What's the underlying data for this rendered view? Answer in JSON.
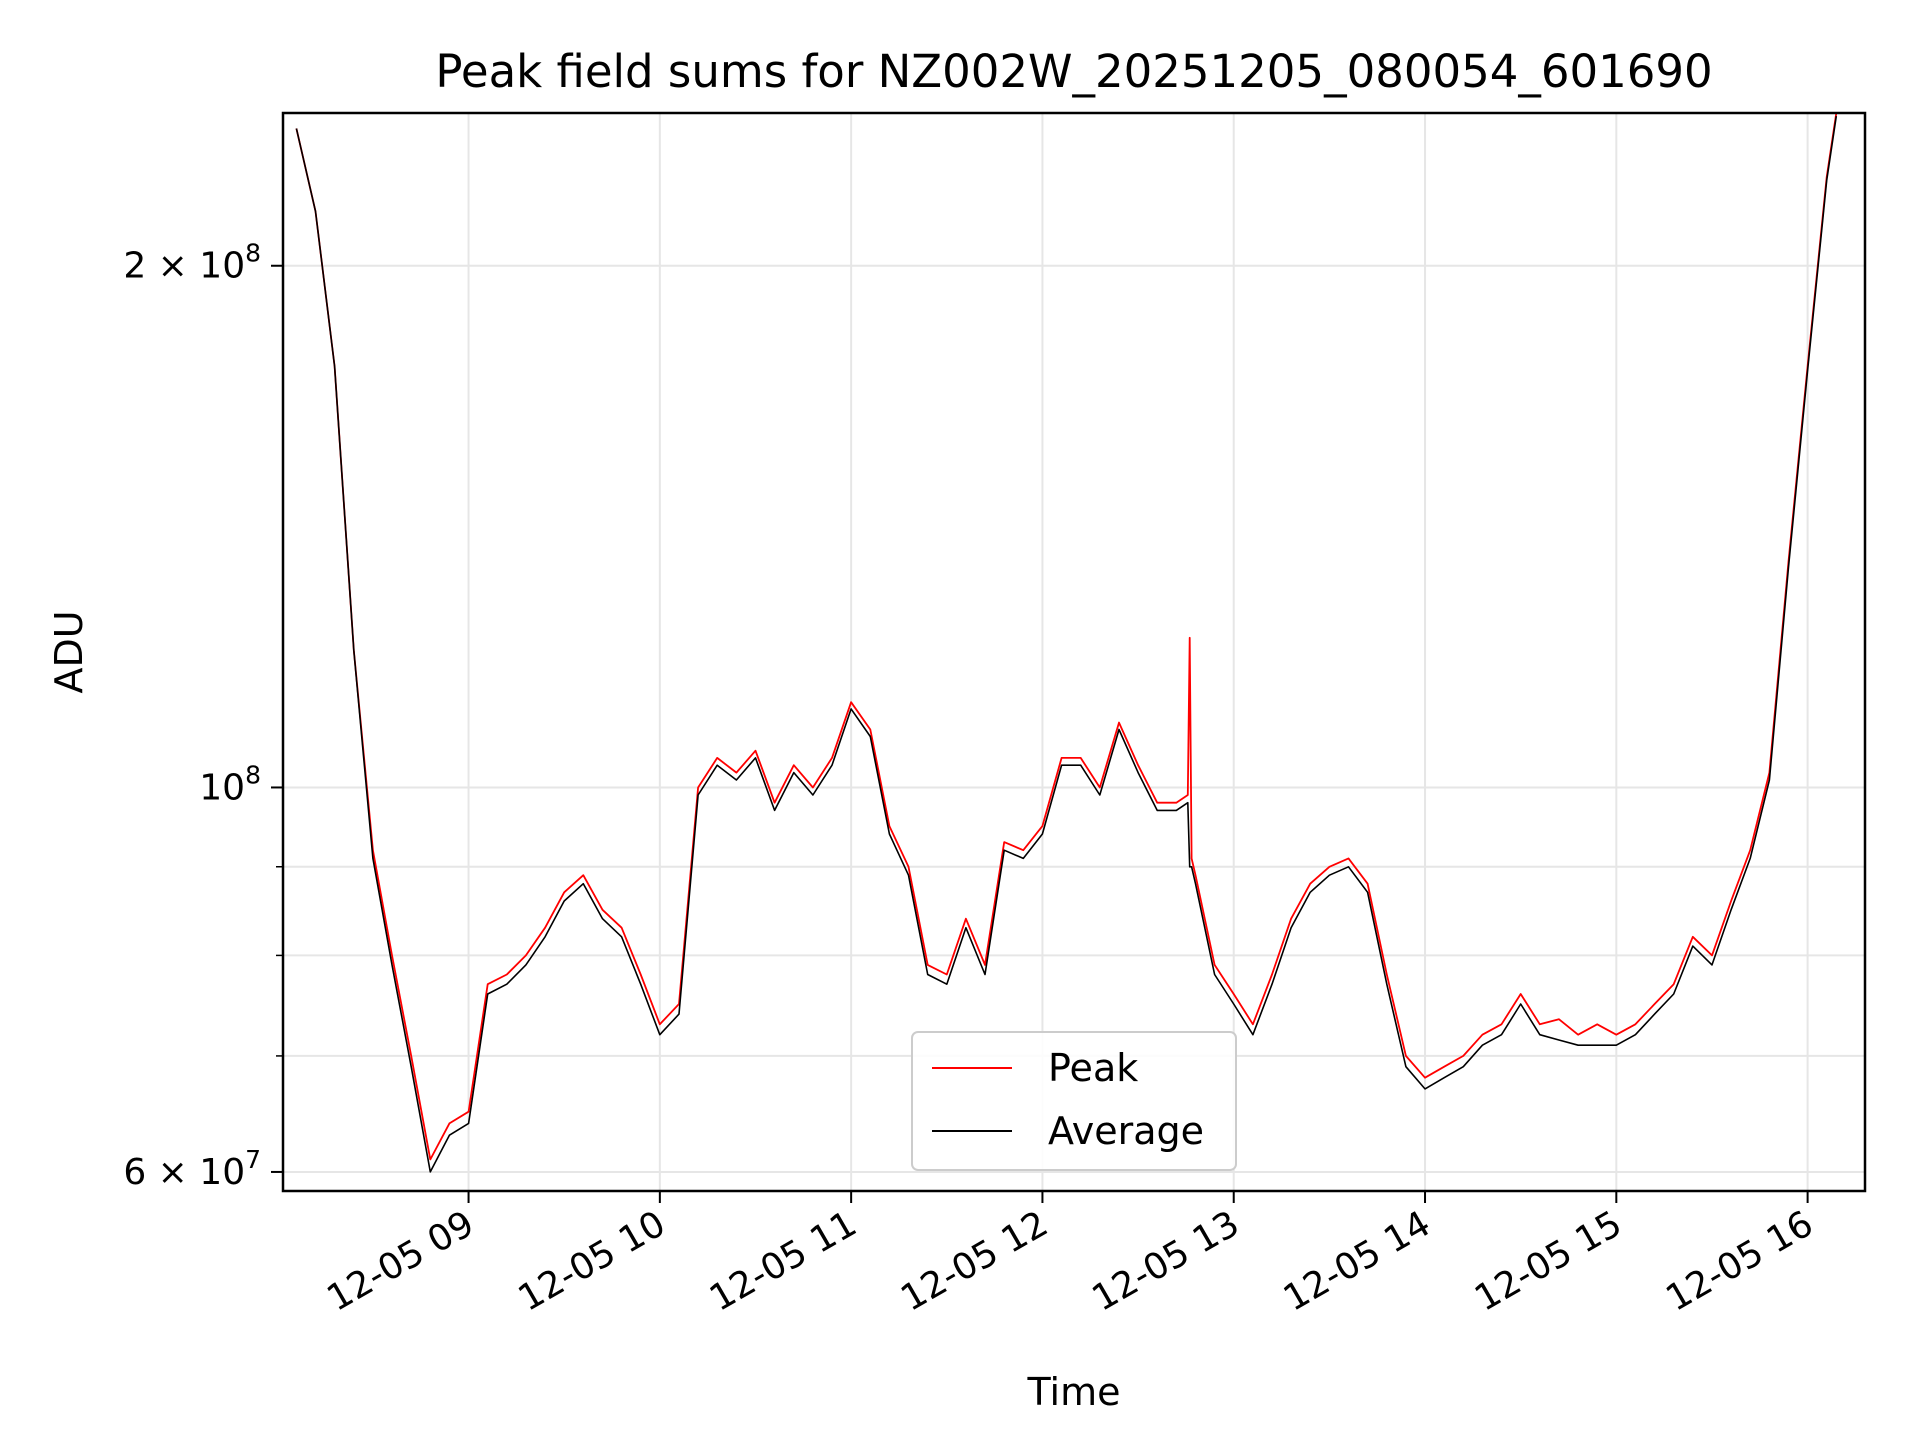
{
  "chart_data": {
    "type": "line",
    "title": "Peak field sums for NZ002W_20251205_080054_601690",
    "xlabel": "Time",
    "ylabel": "ADU",
    "yscale": "log",
    "ylim": [
      58500000,
      245000000
    ],
    "xlim_hours": [
      8.03,
      16.3
    ],
    "grid": true,
    "legend_position": "lower-center",
    "x_ticks": [
      {
        "hour": 9,
        "label": "12-05 09"
      },
      {
        "hour": 10,
        "label": "12-05 10"
      },
      {
        "hour": 11,
        "label": "12-05 11"
      },
      {
        "hour": 12,
        "label": "12-05 12"
      },
      {
        "hour": 13,
        "label": "12-05 13"
      },
      {
        "hour": 14,
        "label": "12-05 14"
      },
      {
        "hour": 15,
        "label": "12-05 15"
      },
      {
        "hour": 16,
        "label": "12-05 16"
      }
    ],
    "y_ticks": [
      {
        "value": 200000000,
        "label_mantissa": "2 × 10",
        "label_exp": "8"
      },
      {
        "value": 100000000,
        "label_mantissa": "10",
        "label_exp": "8"
      },
      {
        "value": 60000000,
        "label_mantissa": "6 × 10",
        "label_exp": "7"
      }
    ],
    "y_minor_ticks": [
      70000000,
      80000000,
      90000000
    ],
    "series": [
      {
        "name": "Peak",
        "color": "#ff0000",
        "x_hours": [
          8.1,
          8.2,
          8.3,
          8.4,
          8.5,
          8.6,
          8.7,
          8.8,
          8.9,
          9.0,
          9.1,
          9.2,
          9.3,
          9.4,
          9.5,
          9.6,
          9.7,
          9.8,
          9.9,
          10.0,
          10.1,
          10.2,
          10.3,
          10.4,
          10.5,
          10.6,
          10.7,
          10.8,
          10.9,
          11.0,
          11.1,
          11.2,
          11.3,
          11.4,
          11.5,
          11.6,
          11.7,
          11.8,
          11.9,
          12.0,
          12.1,
          12.2,
          12.3,
          12.4,
          12.5,
          12.6,
          12.7,
          12.76,
          12.77,
          12.78,
          12.8,
          12.9,
          13.0,
          13.1,
          13.2,
          13.3,
          13.4,
          13.5,
          13.6,
          13.7,
          13.8,
          13.9,
          14.0,
          14.1,
          14.2,
          14.3,
          14.4,
          14.5,
          14.6,
          14.7,
          14.8,
          14.9,
          15.0,
          15.1,
          15.2,
          15.3,
          15.4,
          15.5,
          15.6,
          15.7,
          15.8,
          15.9,
          16.0,
          16.1,
          16.15
        ],
        "values": [
          240000000,
          215000000,
          175000000,
          120000000,
          92000000,
          80000000,
          70000000,
          61000000,
          64000000,
          65000000,
          77000000,
          78000000,
          80000000,
          83000000,
          87000000,
          89000000,
          85000000,
          83000000,
          78000000,
          73000000,
          75000000,
          100000000,
          104000000,
          102000000,
          105000000,
          98000000,
          103000000,
          100000000,
          104000000,
          112000000,
          108000000,
          95000000,
          90000000,
          79000000,
          78000000,
          84000000,
          79000000,
          93000000,
          92000000,
          95000000,
          104000000,
          104000000,
          100000000,
          109000000,
          103000000,
          98000000,
          98000000,
          99000000,
          122000000,
          91000000,
          89000000,
          79000000,
          76000000,
          73000000,
          78000000,
          84000000,
          88000000,
          90000000,
          91000000,
          88000000,
          78000000,
          70000000,
          68000000,
          69000000,
          70000000,
          72000000,
          73000000,
          76000000,
          73000000,
          73500000,
          72000000,
          73000000,
          72000000,
          73000000,
          75000000,
          77000000,
          82000000,
          80000000,
          86000000,
          92000000,
          102000000,
          135000000,
          175000000,
          225000000,
          245000000
        ]
      },
      {
        "name": "Average",
        "color": "#000000",
        "x_hours": [
          8.1,
          8.2,
          8.3,
          8.4,
          8.5,
          8.6,
          8.7,
          8.8,
          8.9,
          9.0,
          9.1,
          9.2,
          9.3,
          9.4,
          9.5,
          9.6,
          9.7,
          9.8,
          9.9,
          10.0,
          10.1,
          10.2,
          10.3,
          10.4,
          10.5,
          10.6,
          10.7,
          10.8,
          10.9,
          11.0,
          11.1,
          11.2,
          11.3,
          11.4,
          11.5,
          11.6,
          11.7,
          11.8,
          11.9,
          12.0,
          12.1,
          12.2,
          12.3,
          12.4,
          12.5,
          12.6,
          12.7,
          12.76,
          12.77,
          12.78,
          12.8,
          12.9,
          13.0,
          13.1,
          13.2,
          13.3,
          13.4,
          13.5,
          13.6,
          13.7,
          13.8,
          13.9,
          14.0,
          14.1,
          14.2,
          14.3,
          14.4,
          14.5,
          14.6,
          14.7,
          14.8,
          14.9,
          15.0,
          15.1,
          15.2,
          15.3,
          15.4,
          15.5,
          15.6,
          15.7,
          15.8,
          15.9,
          16.0,
          16.1,
          16.15
        ],
        "values": [
          240000000,
          215000000,
          175000000,
          120000000,
          91000000,
          79000000,
          69000000,
          60000000,
          63000000,
          64000000,
          76000000,
          77000000,
          79000000,
          82000000,
          86000000,
          88000000,
          84000000,
          82000000,
          77000000,
          72000000,
          74000000,
          99000000,
          103000000,
          101000000,
          104000000,
          97000000,
          102000000,
          99000000,
          103000000,
          111000000,
          107000000,
          94000000,
          89000000,
          78000000,
          77000000,
          83000000,
          78000000,
          92000000,
          91000000,
          94000000,
          103000000,
          103000000,
          99000000,
          108000000,
          102000000,
          97000000,
          97000000,
          98000000,
          90000000,
          90000000,
          88000000,
          78000000,
          75000000,
          72000000,
          77000000,
          83000000,
          87000000,
          89000000,
          90000000,
          87000000,
          77000000,
          69000000,
          67000000,
          68000000,
          69000000,
          71000000,
          72000000,
          75000000,
          72000000,
          71500000,
          71000000,
          71000000,
          71000000,
          72000000,
          74000000,
          76000000,
          81000000,
          79000000,
          85000000,
          91000000,
          101000000,
          134000000,
          174000000,
          224000000,
          244000000
        ]
      }
    ]
  }
}
